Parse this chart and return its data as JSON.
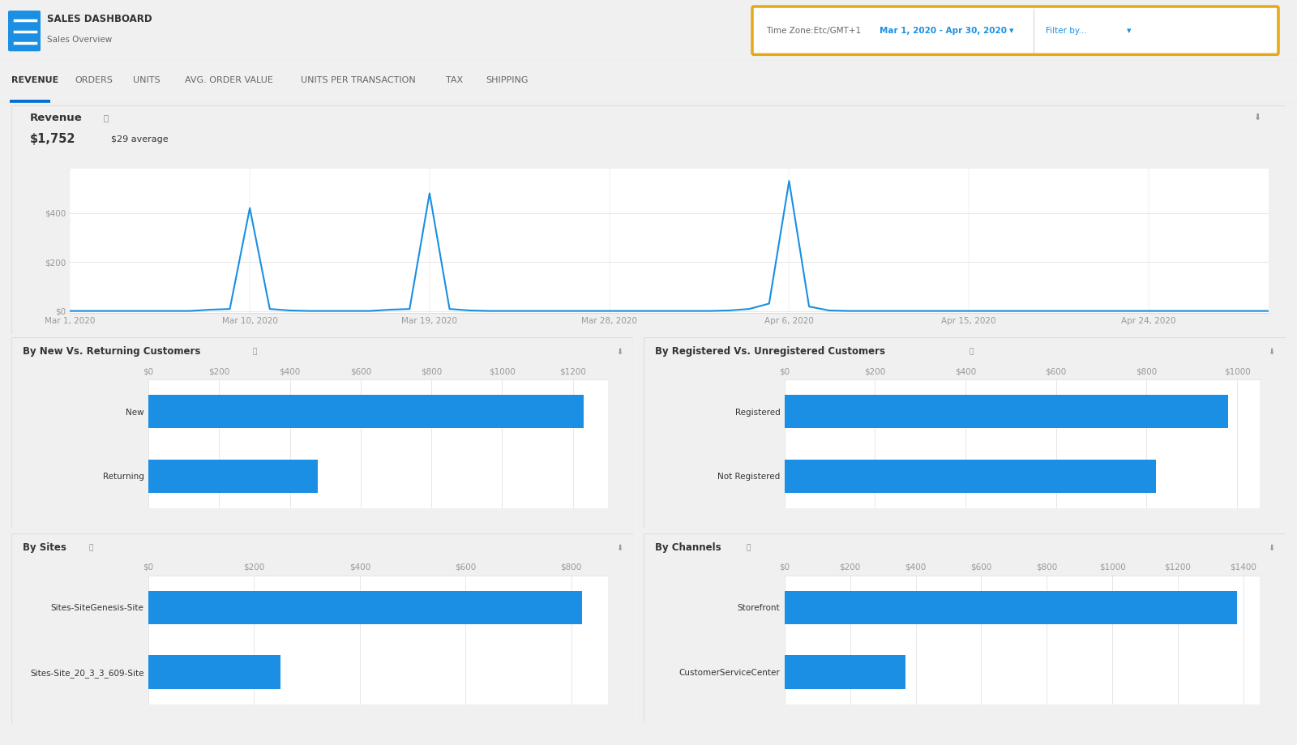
{
  "title": "SALES DASHBOARD",
  "subtitle": "Sales Overview",
  "date_range": "Mar 1, 2020 - Apr 30, 2020",
  "timezone": "Time Zone:Etc/GMT+1",
  "nav_tabs": [
    "REVENUE",
    "ORDERS",
    "UNITS",
    "AVG. ORDER VALUE",
    "UNITS PER TRANSACTION",
    "TAX",
    "SHIPPING"
  ],
  "active_tab": "REVENUE",
  "revenue_total": "$1,752",
  "revenue_avg": "$29 average",
  "line_chart": {
    "x_labels": [
      "Mar 1, 2020",
      "Mar 10, 2020",
      "Mar 19, 2020",
      "Mar 28, 2020",
      "Apr 6, 2020",
      "Apr 15, 2020",
      "Apr 24, 2020"
    ],
    "y_ticks": [
      "$0",
      "$200",
      "$400"
    ],
    "color": "#1a8fe3"
  },
  "new_vs_returning": {
    "title": "By New Vs. Returning Customers",
    "x_ticks": [
      "$0",
      "$200",
      "$400",
      "$600",
      "$800",
      "$1000",
      "$1200"
    ],
    "bars": [
      {
        "label": "New",
        "value": 1230,
        "max": 1300
      },
      {
        "label": "Returning",
        "value": 480,
        "max": 1300
      }
    ],
    "bar_color": "#1a8fe3"
  },
  "registered_vs_unregistered": {
    "title": "By Registered Vs. Unregistered Customers",
    "x_ticks": [
      "$0",
      "$200",
      "$400",
      "$600",
      "$800",
      "$1000"
    ],
    "bars": [
      {
        "label": "Registered",
        "value": 980,
        "max": 1050
      },
      {
        "label": "Not Registered",
        "value": 820,
        "max": 1050
      }
    ],
    "bar_color": "#1a8fe3"
  },
  "by_sites": {
    "title": "By Sites",
    "x_ticks": [
      "$0",
      "$200",
      "$400",
      "$600",
      "$800"
    ],
    "bars": [
      {
        "label": "Sites-SiteGenesis-Site",
        "value": 820,
        "max": 870
      },
      {
        "label": "Sites-Site_20_3_3_609-Site",
        "value": 250,
        "max": 870
      }
    ],
    "bar_color": "#1a8fe3"
  },
  "by_channels": {
    "title": "By Channels",
    "x_ticks": [
      "$0",
      "$200",
      "$400",
      "$600",
      "$800",
      "$1000",
      "$1200",
      "$1400"
    ],
    "bars": [
      {
        "label": "Storefront",
        "value": 1380,
        "max": 1450
      },
      {
        "label": "CustomerServiceCenter",
        "value": 370,
        "max": 1450
      }
    ],
    "bar_color": "#1a8fe3"
  },
  "bg_color": "#f0f0f0",
  "panel_bg": "#ffffff",
  "header_bg": "#f8f8f8",
  "border_color": "#dddddd",
  "text_dark": "#333333",
  "text_medium": "#666666",
  "text_light": "#999999",
  "accent_blue": "#1a8fe3",
  "accent_yellow": "#e6a817",
  "tab_underline": "#0070d2"
}
